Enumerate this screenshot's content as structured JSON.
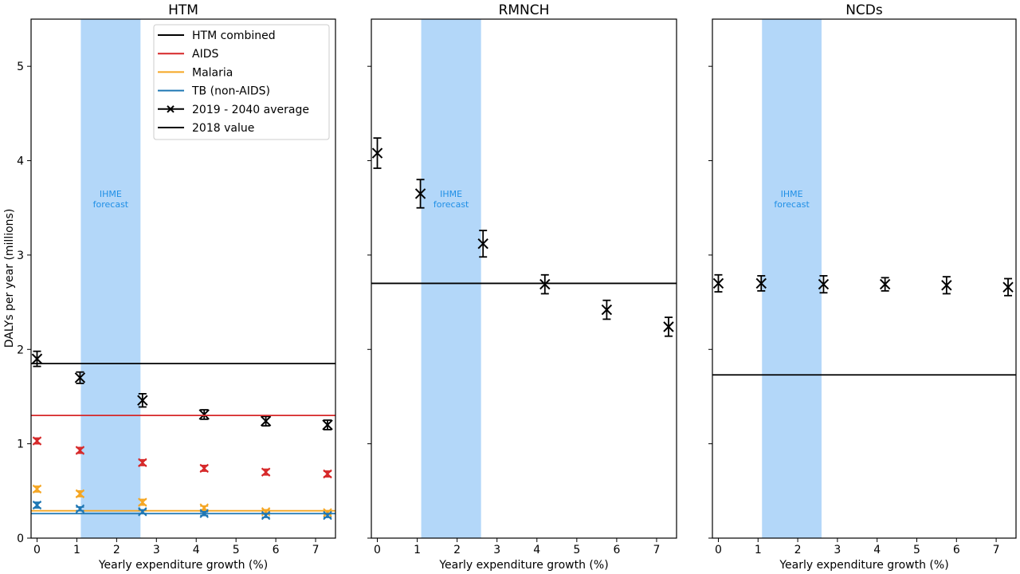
{
  "figure": {
    "ylabel": "DALYs per year (millions)",
    "shared_y_ticks": [
      "0",
      "1",
      "2",
      "3",
      "4",
      "5"
    ]
  },
  "colors": {
    "htm_combined": "#000000",
    "aids": "#d62728",
    "malaria": "#f5a623",
    "tb": "#1f77b4",
    "forecast_band": "#b3d7f9",
    "forecast_text": "#1f8fe6"
  },
  "legend": {
    "placement": "top-right",
    "entries": [
      {
        "label": "HTM combined",
        "color": "#000000",
        "marker": "line"
      },
      {
        "label": "AIDS",
        "color": "#d62728",
        "marker": "line"
      },
      {
        "label": "Malaria",
        "color": "#f5a623",
        "marker": "line"
      },
      {
        "label": "TB (non-AIDS)",
        "color": "#1f77b4",
        "marker": "line"
      },
      {
        "label": "2019 - 2040 average",
        "color": "#000000",
        "marker": "x-line"
      },
      {
        "label": "2018 value",
        "color": "#000000",
        "marker": "line"
      }
    ]
  },
  "chart_data": [
    {
      "type": "scatter",
      "title": "HTM",
      "xlabel": "Yearly expenditure growth (%)",
      "ylabel": "DALYs per year (millions)",
      "xlim": [
        -0.15,
        7.5
      ],
      "ylim": [
        0,
        5.5
      ],
      "x_ticks": [
        0,
        1,
        2,
        3,
        4,
        5,
        6,
        7
      ],
      "y_ticks": [
        0,
        1,
        2,
        3,
        4,
        5
      ],
      "grid": false,
      "forecast_band": {
        "x_range": [
          1.1,
          2.6
        ],
        "label_lines": [
          "IHME",
          "forecast"
        ]
      },
      "x": [
        0,
        1.08,
        2.65,
        4.2,
        5.75,
        7.3
      ],
      "series": [
        {
          "name": "HTM combined",
          "color": "#000000",
          "values": [
            1.9,
            1.7,
            1.46,
            1.31,
            1.24,
            1.2
          ],
          "error": [
            0.08,
            0.06,
            0.07,
            0.05,
            0.05,
            0.05
          ],
          "reference_2018": 1.85
        },
        {
          "name": "AIDS",
          "color": "#d62728",
          "values": [
            1.03,
            0.93,
            0.8,
            0.74,
            0.7,
            0.68
          ],
          "error": [
            0.03,
            0.03,
            0.03,
            0.03,
            0.03,
            0.03
          ],
          "reference_2018": 1.3
        },
        {
          "name": "Malaria",
          "color": "#f5a623",
          "values": [
            0.52,
            0.47,
            0.38,
            0.32,
            0.28,
            0.27
          ],
          "error": [
            0.03,
            0.03,
            0.03,
            0.02,
            0.02,
            0.02
          ],
          "reference_2018": 0.29
        },
        {
          "name": "TB (non-AIDS)",
          "color": "#1f77b4",
          "values": [
            0.35,
            0.31,
            0.28,
            0.26,
            0.24,
            0.24
          ],
          "error": [
            0.03,
            0.02,
            0.02,
            0.02,
            0.02,
            0.02
          ],
          "reference_2018": 0.26
        }
      ]
    },
    {
      "type": "scatter",
      "title": "RMNCH",
      "xlabel": "Yearly expenditure growth (%)",
      "xlim": [
        -0.15,
        7.5
      ],
      "ylim": [
        0,
        5.5
      ],
      "x_ticks": [
        0,
        1,
        2,
        3,
        4,
        5,
        6,
        7
      ],
      "grid": false,
      "forecast_band": {
        "x_range": [
          1.1,
          2.6
        ],
        "label_lines": [
          "IHME",
          "forecast"
        ]
      },
      "x": [
        0,
        1.08,
        2.65,
        4.2,
        5.75,
        7.3
      ],
      "series": [
        {
          "color": "#000000",
          "values": [
            4.08,
            3.65,
            3.12,
            2.69,
            2.42,
            2.24
          ],
          "error": [
            0.16,
            0.15,
            0.14,
            0.1,
            0.1,
            0.1
          ],
          "reference_2018": 2.7
        }
      ]
    },
    {
      "type": "scatter",
      "title": "NCDs",
      "xlabel": "Yearly expenditure growth (%)",
      "xlim": [
        -0.15,
        7.5
      ],
      "ylim": [
        0,
        5.5
      ],
      "x_ticks": [
        0,
        1,
        2,
        3,
        4,
        5,
        6,
        7
      ],
      "grid": false,
      "forecast_band": {
        "x_range": [
          1.1,
          2.6
        ],
        "label_lines": [
          "IHME",
          "forecast"
        ]
      },
      "x": [
        0,
        1.08,
        2.65,
        4.2,
        5.75,
        7.3
      ],
      "series": [
        {
          "color": "#000000",
          "values": [
            2.7,
            2.7,
            2.69,
            2.69,
            2.68,
            2.66
          ],
          "error": [
            0.09,
            0.08,
            0.09,
            0.07,
            0.09,
            0.09
          ],
          "reference_2018": 1.73
        }
      ]
    }
  ]
}
